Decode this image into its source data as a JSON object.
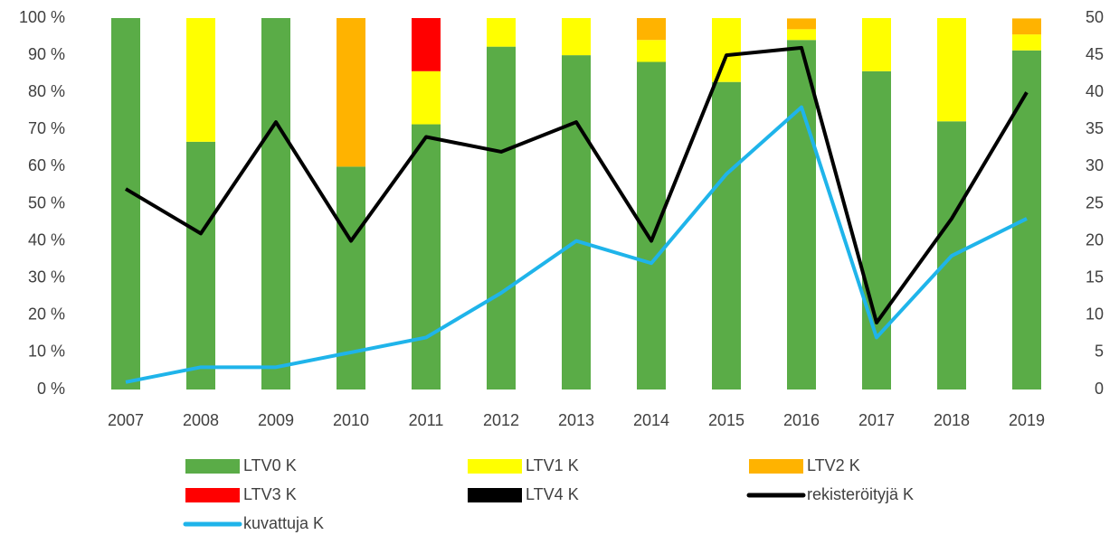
{
  "chart_data": {
    "type": "bar",
    "categories": [
      "2007",
      "2008",
      "2009",
      "2010",
      "2011",
      "2012",
      "2013",
      "2014",
      "2015",
      "2016",
      "2017",
      "2018",
      "2019"
    ],
    "stacked": true,
    "series": [
      {
        "name": "LTV0 K",
        "color": "#5aac47",
        "values": [
          100,
          66.7,
          100,
          60,
          71.4,
          92.3,
          90,
          88.2,
          82.8,
          94.1,
          85.7,
          72.2,
          91.3
        ]
      },
      {
        "name": "LTV1 K",
        "color": "#ffff00",
        "values": [
          0,
          33.3,
          0,
          0,
          14.3,
          7.7,
          10,
          5.9,
          17.2,
          2.9,
          14.3,
          27.8,
          4.3
        ]
      },
      {
        "name": "LTV2 K",
        "color": "#ffb300",
        "values": [
          0,
          0,
          0,
          40,
          0,
          0,
          0,
          5.9,
          0,
          2.9,
          0,
          0,
          4.3
        ]
      },
      {
        "name": "LTV3 K",
        "color": "#ff0000",
        "values": [
          0,
          0,
          0,
          0,
          14.3,
          0,
          0,
          0,
          0,
          0,
          0,
          0,
          0
        ]
      },
      {
        "name": "LTV4 K",
        "color": "#000000",
        "values": [
          0,
          0,
          0,
          0,
          0,
          0,
          0,
          0,
          0,
          0,
          0,
          0,
          0
        ]
      },
      {
        "name": "rekisteröityjä K",
        "type": "line",
        "axis": "y2",
        "color": "#000000",
        "values": [
          27,
          21,
          36,
          20,
          34,
          32,
          36,
          20,
          45,
          46,
          9,
          23,
          40
        ]
      },
      {
        "name": "kuvattuja K",
        "type": "line",
        "axis": "y2",
        "color": "#1fb4ea",
        "values": [
          1,
          3,
          3,
          5,
          7,
          13,
          20,
          17,
          29,
          38,
          7,
          18,
          23
        ]
      }
    ],
    "ylim": [
      0,
      100
    ],
    "yticks": [
      {
        "value": 0,
        "label": "0 %"
      },
      {
        "value": 10,
        "label": "10 %"
      },
      {
        "value": 20,
        "label": "20 %"
      },
      {
        "value": 30,
        "label": "30 %"
      },
      {
        "value": 40,
        "label": "40 %"
      },
      {
        "value": 50,
        "label": "50 %"
      },
      {
        "value": 60,
        "label": "60 %"
      },
      {
        "value": 70,
        "label": "70 %"
      },
      {
        "value": 80,
        "label": "80 %"
      },
      {
        "value": 90,
        "label": "90 %"
      },
      {
        "value": 100,
        "label": "100 %"
      }
    ],
    "y2lim": [
      0,
      50
    ],
    "y2ticks": [
      0,
      5,
      10,
      15,
      20,
      25,
      30,
      35,
      40,
      45,
      50
    ],
    "legend": "bottom"
  }
}
